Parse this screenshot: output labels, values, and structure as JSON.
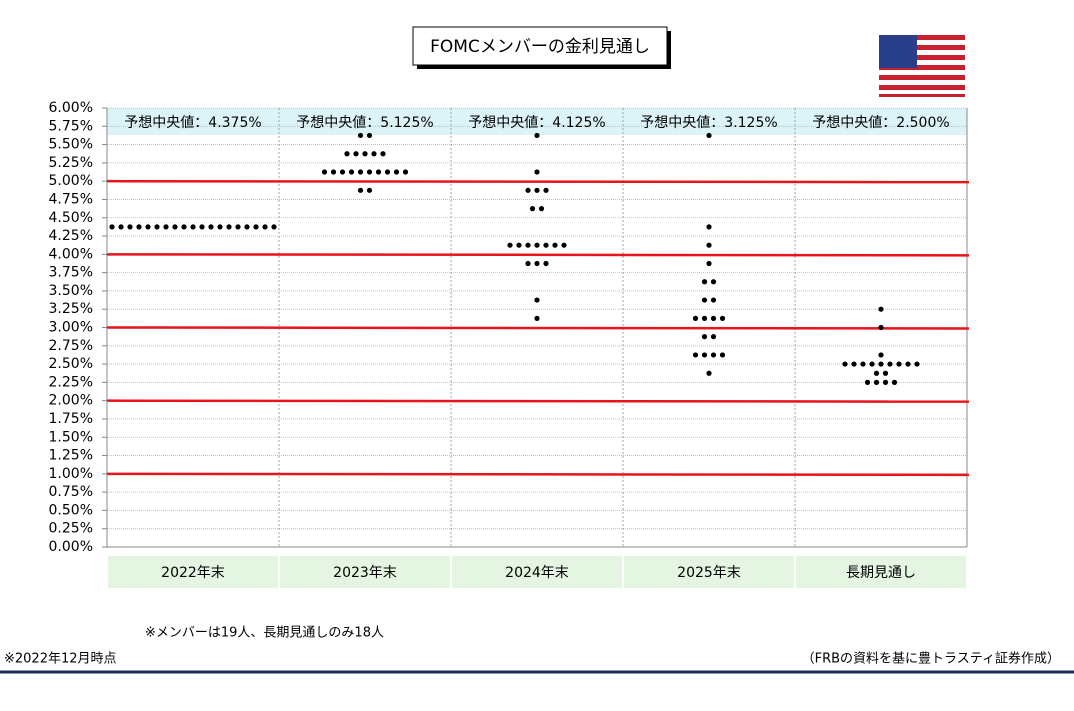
{
  "chart_data": {
    "type": "dotplot",
    "title": "FOMCメンバーの金利見通し",
    "categories": [
      "2022年末",
      "2023年末",
      "2024年末",
      "2025年末",
      "長期見通し"
    ],
    "median_labels": [
      "予想中央値：4.375%",
      "予想中央値：5.125%",
      "予想中央値：4.125%",
      "予想中央値：3.125%",
      "予想中央値：2.500%"
    ],
    "values": [
      [
        4.375,
        4.375,
        4.375,
        4.375,
        4.375,
        4.375,
        4.375,
        4.375,
        4.375,
        4.375,
        4.375,
        4.375,
        4.375,
        4.375,
        4.375,
        4.375,
        4.375,
        4.375,
        4.375
      ],
      [
        5.625,
        5.625,
        5.375,
        5.375,
        5.375,
        5.375,
        5.375,
        5.125,
        5.125,
        5.125,
        5.125,
        5.125,
        5.125,
        5.125,
        5.125,
        5.125,
        5.125,
        4.875,
        4.875
      ],
      [
        5.625,
        5.125,
        4.875,
        4.875,
        4.875,
        4.625,
        4.625,
        4.125,
        4.125,
        4.125,
        4.125,
        4.125,
        4.125,
        4.125,
        3.875,
        3.875,
        3.875,
        3.375,
        3.125
      ],
      [
        5.625,
        4.375,
        4.125,
        3.875,
        3.625,
        3.625,
        3.375,
        3.375,
        3.125,
        3.125,
        3.125,
        3.125,
        2.875,
        2.875,
        2.625,
        2.625,
        2.625,
        2.625,
        2.375
      ],
      [
        3.25,
        3.0,
        2.625,
        2.5,
        2.5,
        2.5,
        2.5,
        2.5,
        2.5,
        2.5,
        2.5,
        2.5,
        2.375,
        2.375,
        2.25,
        2.25,
        2.25,
        2.25
      ]
    ],
    "color": "#000000",
    "reference_lines": [
      1,
      2,
      3,
      4,
      5
    ],
    "reference_color": "#e8141b",
    "ylim": [
      0,
      6
    ],
    "yticks": [
      {
        "value": 0,
        "label": "0.00%"
      },
      {
        "value": 0.25,
        "label": "0.25%"
      },
      {
        "value": 0.5,
        "label": "0.50%"
      },
      {
        "value": 0.75,
        "label": "0.75%"
      },
      {
        "value": 1,
        "label": "1.00%"
      },
      {
        "value": 1.25,
        "label": "1.25%"
      },
      {
        "value": 1.5,
        "label": "1.50%"
      },
      {
        "value": 1.75,
        "label": "1.75%"
      },
      {
        "value": 2,
        "label": "2.00%"
      },
      {
        "value": 2.25,
        "label": "2.25%"
      },
      {
        "value": 2.5,
        "label": "2.50%"
      },
      {
        "value": 2.75,
        "label": "2.75%"
      },
      {
        "value": 3,
        "label": "3.00%"
      },
      {
        "value": 3.25,
        "label": "3.25%"
      },
      {
        "value": 3.5,
        "label": "3.50%"
      },
      {
        "value": 3.75,
        "label": "3.75%"
      },
      {
        "value": 4,
        "label": "4.00%"
      },
      {
        "value": 4.25,
        "label": "4.25%"
      },
      {
        "value": 4.5,
        "label": "4.50%"
      },
      {
        "value": 4.75,
        "label": "4.75%"
      },
      {
        "value": 5,
        "label": "5.00%"
      },
      {
        "value": 5.25,
        "label": "5.25%"
      },
      {
        "value": 5.5,
        "label": "5.50%"
      },
      {
        "value": 5.75,
        "label": "5.75%"
      },
      {
        "value": 6,
        "label": "6.00%"
      }
    ],
    "grid": true,
    "notes": [
      "※メンバーは19人、長期見通しのみ18人",
      "※2022年12月時点",
      "（FRBの資料を基に豊トラスティ証券作成）"
    ]
  }
}
